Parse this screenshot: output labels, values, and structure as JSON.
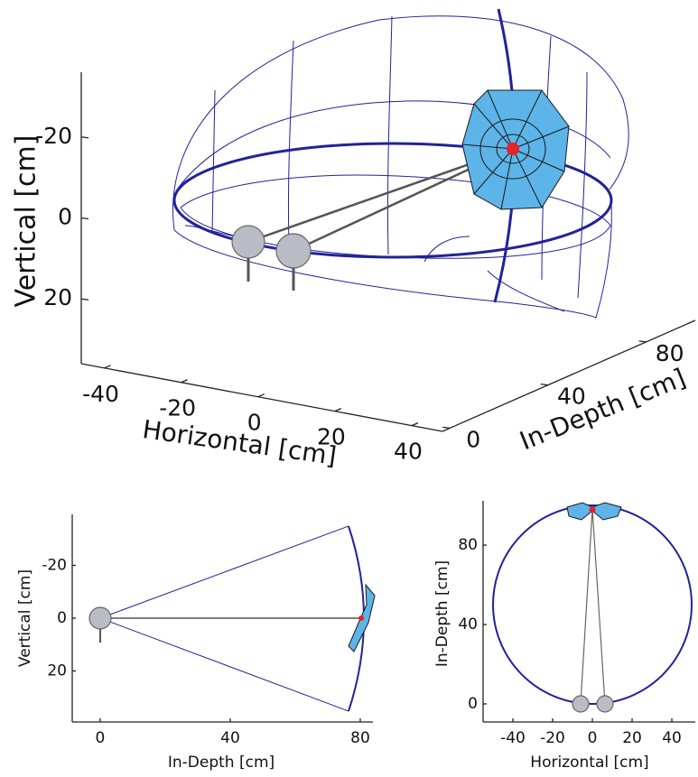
{
  "chart_data": [
    {
      "type": "3d",
      "x_label": "Horizontal [cm]",
      "y_label": "In-Depth [cm]",
      "z_label": "Vertical [cm]",
      "xlim": [
        -46,
        48
      ],
      "xticks": [
        -40,
        -20,
        0,
        20,
        40
      ],
      "ylim": [
        -3,
        100
      ],
      "yticks": [
        0,
        40,
        80
      ],
      "zlim": [
        -36,
        36
      ],
      "zticks": [
        -20,
        0,
        20
      ],
      "z_reversed": true
    },
    {
      "type": "2d",
      "x_label": "In-Depth [cm]",
      "y_label": "Vertical [cm]",
      "xlim": [
        -8.6,
        83.9
      ],
      "xticks": [
        0,
        40,
        80
      ],
      "ylim": [
        -39.3,
        39.3
      ],
      "yticks": [
        -20,
        0,
        20
      ],
      "y_reversed": true
    },
    {
      "type": "2d",
      "x_label": "Horizontal [cm]",
      "y_label": "In-Depth [cm]",
      "xlim": [
        -55,
        51.8
      ],
      "xticks": [
        -40,
        -20,
        0,
        20,
        40
      ],
      "ylim": [
        -9.1,
        102.3
      ],
      "yticks": [
        0,
        40,
        80
      ],
      "y_reversed": false
    }
  ]
}
